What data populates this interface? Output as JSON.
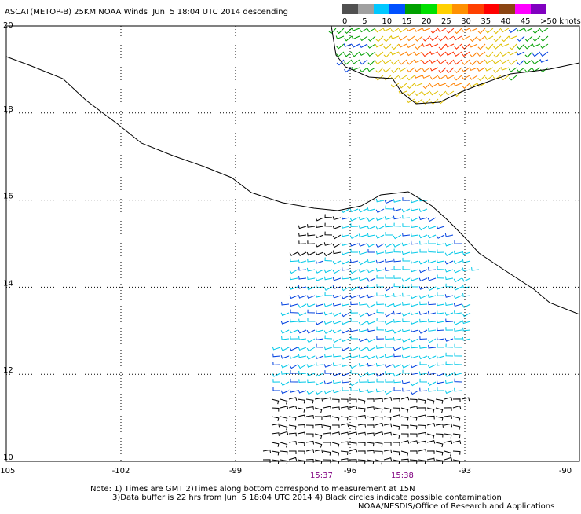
{
  "title": "ASCAT(METOP-B) 25KM NOAA Winds  Jun  5 18:04 UTC 2014 descending",
  "colorbar": {
    "colors": [
      "#505050",
      "#a0a0a0",
      "#00c8ff",
      "#0050ff",
      "#00a000",
      "#00e000",
      "#ffd000",
      "#ff9000",
      "#ff4000",
      "#ff0000",
      "#8b4513",
      "#ff00ff",
      "#8000c0"
    ],
    "labels": [
      "0",
      "5",
      "10",
      "15",
      "20",
      "25",
      "30",
      "35",
      "40",
      "45",
      ">50 knots"
    ]
  },
  "map": {
    "xlim": [
      -105,
      -90
    ],
    "ylim": [
      10,
      20
    ],
    "xticks": [
      -105,
      -102,
      -99,
      -96,
      -93,
      -90
    ],
    "yticks": [
      10,
      12,
      14,
      16,
      18,
      20
    ]
  },
  "times": [
    "15:37",
    "15:38"
  ],
  "notes": [
    "Note: 1) Times are GMT 2)Times along bottom correspond to measurement at 15N",
    "3)Data buffer is 22 hrs from Jun  5 18:04 UTC 2014 4) Black circles indicate possible contamination",
    "NOAA/NESDIS/Office of Research and Applications"
  ]
}
